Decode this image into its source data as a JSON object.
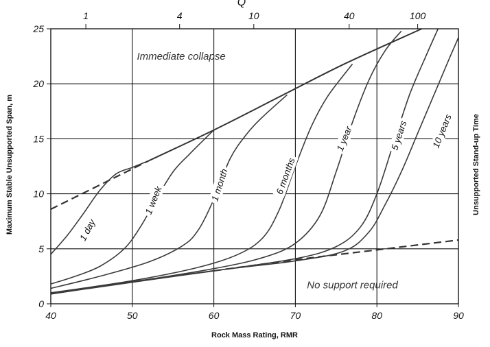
{
  "chart_data": {
    "type": "line",
    "xlabel": "Rock Mass Rating, RMR",
    "ylabel": "Maximum Stable Unsupported Span, m",
    "y2label": "Unsupported Stand-up Time",
    "top_axis_title": "Q",
    "xlim": [
      40,
      90
    ],
    "ylim": [
      0,
      25
    ],
    "x_ticks": [
      40,
      50,
      60,
      70,
      80,
      90
    ],
    "y_ticks": [
      0,
      5,
      10,
      15,
      20,
      25
    ],
    "top_ticks": [
      {
        "label": "1",
        "rmr": 44.3
      },
      {
        "label": "4",
        "rmr": 55.8
      },
      {
        "label": "10",
        "rmr": 64.9
      },
      {
        "label": "40",
        "rmr": 76.6
      },
      {
        "label": "100",
        "rmr": 85.0
      }
    ],
    "grid": true,
    "regions": [
      {
        "text": "Immediate collapse",
        "x": 56,
        "y": 22.5
      },
      {
        "text": "No support required",
        "x": 77,
        "y": 1.7
      }
    ],
    "boundaries": [
      {
        "name": "collapse-solid",
        "style": "solid",
        "points": [
          [
            52,
            13
          ],
          [
            60,
            15.8
          ],
          [
            68,
            18.8
          ],
          [
            76,
            21.8
          ],
          [
            85.5,
            25
          ]
        ]
      },
      {
        "name": "collapse-dashed",
        "style": "dashed",
        "points": [
          [
            40,
            8.6
          ],
          [
            52,
            13
          ]
        ]
      },
      {
        "name": "no-support-solid",
        "style": "solid",
        "points": [
          [
            40,
            0.9
          ],
          [
            50,
            2.0
          ],
          [
            60,
            3.0
          ]
        ]
      },
      {
        "name": "no-support-dashed",
        "style": "dashed",
        "points": [
          [
            60,
            3.0
          ],
          [
            70,
            4.0
          ],
          [
            80,
            4.9
          ],
          [
            90,
            5.8
          ]
        ]
      }
    ],
    "series": [
      {
        "name": "1 day",
        "label_at": [
          44.5,
          6.7
        ],
        "label_angle": -62,
        "points": [
          [
            40,
            4.5
          ],
          [
            42,
            6.2
          ],
          [
            44,
            8.2
          ],
          [
            46,
            10.3
          ],
          [
            48,
            11.8
          ],
          [
            50,
            12.4
          ],
          [
            52,
            13
          ]
        ]
      },
      {
        "name": "1 week",
        "label_at": [
          52.6,
          9.4
        ],
        "label_angle": -68,
        "points": [
          [
            40,
            1.8
          ],
          [
            43,
            2.5
          ],
          [
            46,
            3.4
          ],
          [
            49,
            5.0
          ],
          [
            51,
            7.0
          ],
          [
            53,
            9.6
          ],
          [
            55,
            12.0
          ],
          [
            57,
            13.6
          ],
          [
            60,
            15.8
          ]
        ]
      },
      {
        "name": "1 month",
        "label_at": [
          60.7,
          10.8
        ],
        "label_angle": -72,
        "points": [
          [
            40,
            1.4
          ],
          [
            46,
            2.5
          ],
          [
            52,
            3.8
          ],
          [
            56,
            5.2
          ],
          [
            58,
            6.6
          ],
          [
            60,
            9.5
          ],
          [
            62,
            13.2
          ],
          [
            64,
            15.4
          ],
          [
            66,
            17.0
          ],
          [
            69,
            19.0
          ]
        ]
      },
      {
        "name": "6 months",
        "label_at": [
          68.8,
          11.6
        ],
        "label_angle": -70,
        "points": [
          [
            40,
            1.0
          ],
          [
            50,
            2.1
          ],
          [
            58,
            3.3
          ],
          [
            63,
            4.5
          ],
          [
            66,
            6.0
          ],
          [
            68,
            8.5
          ],
          [
            70,
            12.5
          ],
          [
            72,
            16.2
          ],
          [
            74,
            18.9
          ],
          [
            77,
            21.8
          ]
        ]
      },
      {
        "name": "1 year",
        "label_at": [
          76.0,
          15.0
        ],
        "label_angle": -68,
        "points": [
          [
            40,
            1.0
          ],
          [
            50,
            2.0
          ],
          [
            60,
            3.2
          ],
          [
            66,
            4.2
          ],
          [
            70,
            5.5
          ],
          [
            73,
            8.0
          ],
          [
            75,
            12.0
          ],
          [
            77,
            16.5
          ],
          [
            79,
            20.3
          ],
          [
            81,
            23.0
          ],
          [
            83,
            24.8
          ]
        ]
      },
      {
        "name": "5 years",
        "label_at": [
          82.7,
          15.3
        ],
        "label_angle": -72,
        "points": [
          [
            40,
            1.0
          ],
          [
            60,
            3.0
          ],
          [
            70,
            4.1
          ],
          [
            75,
            5.2
          ],
          [
            78,
            7.0
          ],
          [
            80,
            10.0
          ],
          [
            82,
            14.5
          ],
          [
            84,
            19.0
          ],
          [
            86,
            22.5
          ],
          [
            87.5,
            25
          ]
        ]
      },
      {
        "name": "10 years",
        "label_at": [
          88.0,
          15.7
        ],
        "label_angle": -68,
        "points": [
          [
            40,
            0.9
          ],
          [
            60,
            3.0
          ],
          [
            70,
            3.9
          ],
          [
            76,
            4.8
          ],
          [
            79,
            6.5
          ],
          [
            81,
            9.0
          ],
          [
            83,
            12.0
          ],
          [
            85,
            15.5
          ],
          [
            87,
            19.0
          ],
          [
            89,
            22.5
          ],
          [
            90,
            24.2
          ]
        ]
      }
    ],
    "colors": {
      "line": "#3a3a3a",
      "grid": "#111111",
      "text": "#111111"
    }
  }
}
